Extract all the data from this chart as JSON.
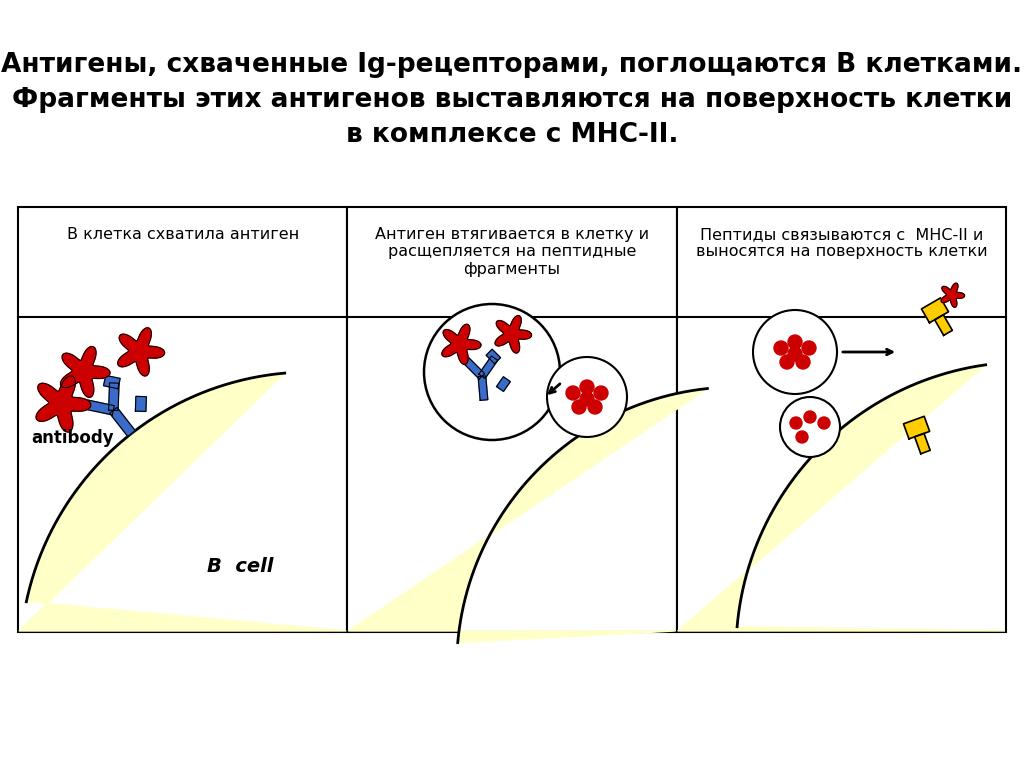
{
  "title_line1": "Антигены, схваченные Ig-рецепторами, поглощаются В клетками.",
  "title_line2": "Фрагменты этих антигенов выставляются на поверхность клетки",
  "title_line3": "в комплексе с МНС-II.",
  "panel1_label": "В клетка схватила антиген",
  "panel2_label": "Антиген втягивается в клетку и\nрасщепляется на пептидные\nфрагменты",
  "panel3_label": "Пептиды связываются с  МНС-II и\nвыносятся на поверхность клетки",
  "antibody_label": "antibody",
  "bcell_label": "B  cell",
  "cell_color": "#FFFFC8",
  "antigen_color": "#CC0000",
  "antibody_color": "#3A6BC8",
  "mhc_color": "#FFCC00",
  "bg_color": "#FFFFFF",
  "title_fontsize": 19,
  "label_fontsize": 11.5
}
